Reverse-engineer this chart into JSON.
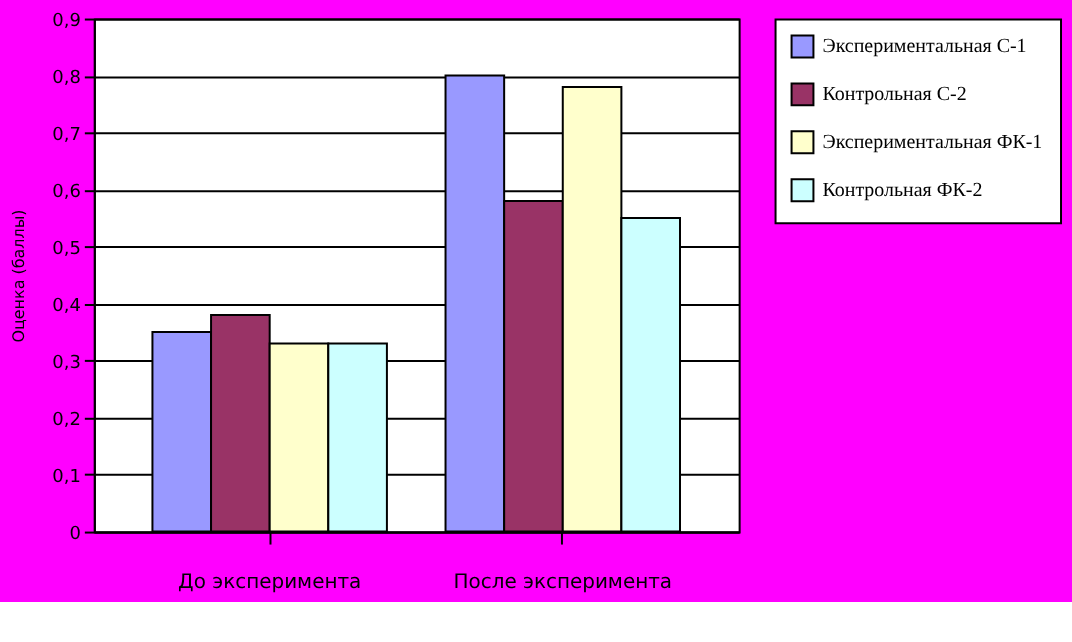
{
  "chart_data": {
    "type": "bar",
    "ylabel": "Оценка (баллы)",
    "categories": [
      "До эксперимента",
      "После эксперимента"
    ],
    "series": [
      {
        "name": "Экспериментальная С-1",
        "color": "#9999ff",
        "values": [
          0.35,
          0.8
        ]
      },
      {
        "name": "Контрольная С-2",
        "color": "#993366",
        "values": [
          0.38,
          0.58
        ]
      },
      {
        "name": "Экспериментальная ФК-1",
        "color": "#ffffcc",
        "values": [
          0.33,
          0.78
        ]
      },
      {
        "name": "Контрольная ФК-2",
        "color": "#ccffff",
        "values": [
          0.33,
          0.55
        ]
      }
    ],
    "ylim": [
      0,
      0.9
    ],
    "yticks": [
      {
        "value": 0,
        "label": "0"
      },
      {
        "value": 0.1,
        "label": "0,1"
      },
      {
        "value": 0.2,
        "label": "0,2"
      },
      {
        "value": 0.3,
        "label": "0,3"
      },
      {
        "value": 0.4,
        "label": "0,4"
      },
      {
        "value": 0.5,
        "label": "0,5"
      },
      {
        "value": 0.6,
        "label": "0,6"
      },
      {
        "value": 0.7,
        "label": "0,7"
      },
      {
        "value": 0.8,
        "label": "0,8"
      },
      {
        "value": 0.9,
        "label": "0,9"
      }
    ],
    "grid": "y",
    "legend": "right"
  }
}
